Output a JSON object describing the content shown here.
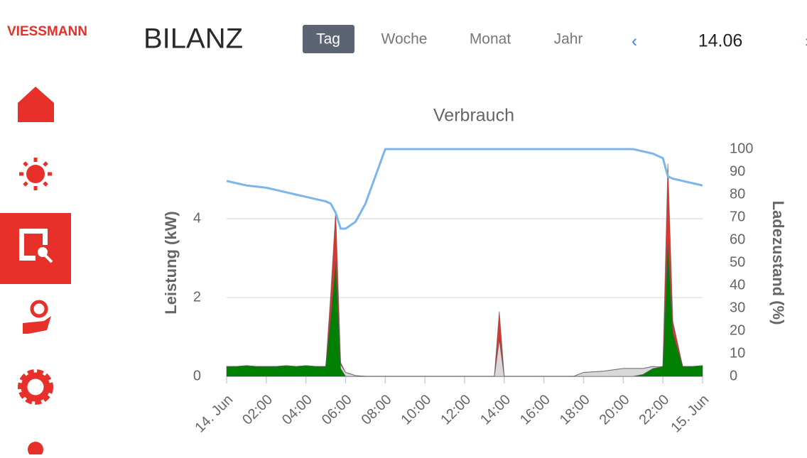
{
  "header": {
    "logo": "VIESSMANN",
    "title": "BILANZ",
    "tabs": [
      "Tag",
      "Woche",
      "Monat",
      "Jahr"
    ],
    "active_tab": 0,
    "prev": "‹",
    "date": "14.06",
    "next": "›"
  },
  "chart_data": {
    "type": "area",
    "title": "Verbrauch",
    "y_label": "Leistung (kW)",
    "y2_label": "Ladezustand (%)",
    "stacked": true,
    "x": [
      0,
      0.5,
      1,
      1.5,
      2,
      2.5,
      3,
      3.5,
      4,
      4.5,
      5,
      5.25,
      5.5,
      5.75,
      6,
      6.5,
      7,
      8,
      10,
      12,
      13.5,
      13.75,
      14,
      14.5,
      16,
      17.5,
      18,
      19,
      20,
      20.5,
      21,
      21.5,
      21.75,
      22,
      22.25,
      22.5,
      23,
      23.5,
      24
    ],
    "series": [
      {
        "color": "#008000",
        "values": [
          0.25,
          0.25,
          0.27,
          0.25,
          0.25,
          0.25,
          0.27,
          0.25,
          0.27,
          0.25,
          0.25,
          1.5,
          2.9,
          0.2,
          0,
          0,
          0,
          0,
          0,
          0,
          0,
          0,
          0,
          0,
          0,
          0,
          0,
          0,
          0,
          0,
          0.05,
          0.2,
          0.22,
          0.25,
          3.4,
          1.1,
          0.25,
          0.25,
          0.27
        ]
      },
      {
        "color": "#d9d9d9",
        "values": [
          0,
          0,
          0,
          0,
          0,
          0,
          0,
          0,
          0,
          0,
          0,
          0,
          0,
          0.1,
          0.1,
          0.02,
          0,
          0,
          0,
          0,
          0,
          0.95,
          0,
          0,
          0,
          0,
          0.1,
          0.13,
          0.2,
          0.2,
          0.15,
          0.05,
          0.02,
          0,
          0,
          0,
          0,
          0,
          0
        ]
      },
      {
        "color": "#e0352b",
        "values": [
          0,
          0,
          0,
          0,
          0,
          0,
          0,
          0,
          0,
          0,
          0,
          0.6,
          1.3,
          0.05,
          0,
          0,
          0,
          0,
          0,
          0,
          0,
          0.7,
          0,
          0,
          0,
          0,
          0,
          0,
          0,
          0,
          0,
          0,
          0,
          0,
          2.0,
          0.3,
          0,
          0,
          0
        ]
      },
      {
        "color": "#7cb5ec",
        "axis": "y2",
        "values": [
          86,
          85,
          84,
          83.5,
          83,
          82,
          81,
          80,
          79,
          78,
          77,
          76,
          72,
          65,
          65,
          68,
          76,
          100,
          100,
          100,
          100,
          100,
          100,
          100,
          100,
          100,
          100,
          100,
          100,
          100,
          99,
          98,
          97,
          96,
          88,
          87,
          86,
          85,
          84
        ]
      }
    ],
    "xlim": [
      0,
      24
    ],
    "xticks": [
      {
        "value": 0,
        "label": "14. Jun"
      },
      {
        "value": 2,
        "label": "02:00"
      },
      {
        "value": 4,
        "label": "04:00"
      },
      {
        "value": 6,
        "label": "06:00"
      },
      {
        "value": 8,
        "label": "08:00"
      },
      {
        "value": 10,
        "label": "10:00"
      },
      {
        "value": 12,
        "label": "12:00"
      },
      {
        "value": 14,
        "label": "14:00"
      },
      {
        "value": 16,
        "label": "16:00"
      },
      {
        "value": 18,
        "label": "18:00"
      },
      {
        "value": 20,
        "label": "20:00"
      },
      {
        "value": 22,
        "label": "22:00"
      },
      {
        "value": 24,
        "label": "15. Jun"
      }
    ],
    "ylim": [
      0,
      5.77
    ],
    "yticks": [
      0,
      2,
      4
    ],
    "y2lim": [
      0,
      100
    ],
    "y2ticks": [
      0,
      10,
      20,
      30,
      40,
      50,
      60,
      70,
      80,
      90,
      100
    ],
    "grid": true
  }
}
